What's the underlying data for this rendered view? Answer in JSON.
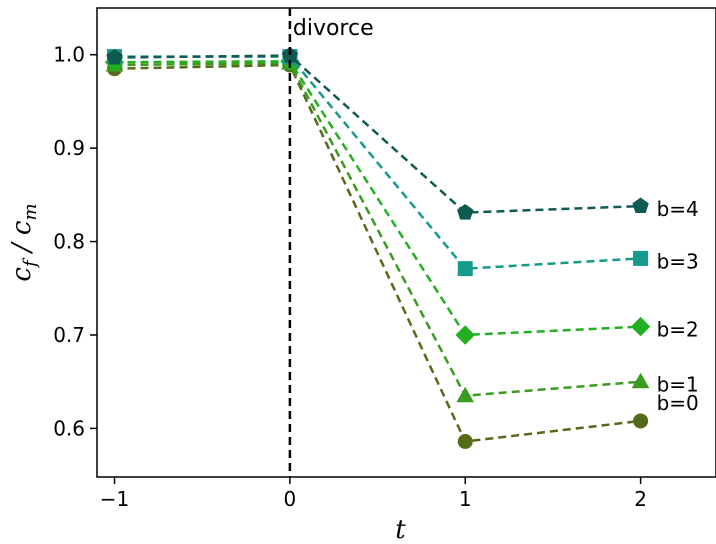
{
  "chart_data": {
    "type": "line",
    "title": "",
    "xlabel": "t",
    "ylabel_main": "c",
    "ylabel_sub1": "f",
    "ylabel_sep": " / ",
    "ylabel_main2": "c",
    "ylabel_sub2": "m",
    "x": [
      -1,
      0,
      1,
      2
    ],
    "xlim": [
      -1.1,
      2.43
    ],
    "ylim": [
      0.548,
      1.05
    ],
    "xticks": [
      -1,
      0,
      1,
      2
    ],
    "xtick_labels": [
      "−1",
      "0",
      "1",
      "2"
    ],
    "yticks": [
      0.6,
      0.7,
      0.8,
      0.9,
      1.0
    ],
    "ytick_labels": [
      "0.6",
      "0.7",
      "0.8",
      "0.9",
      "1.0"
    ],
    "grid": false,
    "vline": {
      "x": 0,
      "label": "divorce"
    },
    "series": [
      {
        "name": "b=0",
        "values": [
          0.985,
          0.989,
          0.586,
          0.608
        ],
        "color": "#556b1a",
        "marker": "circle"
      },
      {
        "name": "b=1",
        "values": [
          0.989,
          0.991,
          0.635,
          0.65
        ],
        "color": "#3a9c1e",
        "marker": "triangle"
      },
      {
        "name": "b=2",
        "values": [
          0.992,
          0.993,
          0.7,
          0.709
        ],
        "color": "#22b022",
        "marker": "diamond"
      },
      {
        "name": "b=3",
        "values": [
          0.998,
          0.998,
          0.771,
          0.782
        ],
        "color": "#169a8c",
        "marker": "square"
      },
      {
        "name": "b=4",
        "values": [
          0.997,
          0.999,
          0.831,
          0.838
        ],
        "color": "#0f5a52",
        "marker": "pentagon"
      }
    ]
  }
}
